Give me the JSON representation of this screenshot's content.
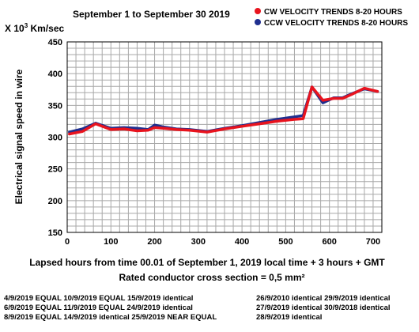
{
  "chart_data": {
    "type": "line",
    "title": "September 1 to September 30  2019",
    "y_unit_label": "X 10",
    "y_unit_exp": "3",
    "y_unit_rest": " Km/sec",
    "ylabel": "Electrical signal speed in wire",
    "xlabel": "Lapsed hours from time 00.01 of  September 1, 2019  local time  + 3 hours + GMT",
    "xlabel2": "Rated conductor cross section = 0,5 mm²",
    "xlim": [
      0,
      720
    ],
    "ylim": [
      150,
      450
    ],
    "xticks": [
      0,
      100,
      200,
      300,
      400,
      500,
      600,
      700
    ],
    "yticks": [
      150,
      200,
      250,
      300,
      350,
      400,
      450
    ],
    "grid": true,
    "legend_position": "top-right",
    "series": [
      {
        "name": "CCW VELOCITY TRENDS 8-20 HOURS",
        "color": "#1f2f8f",
        "points": [
          [
            5,
            308
          ],
          [
            35,
            313
          ],
          [
            65,
            322
          ],
          [
            100,
            314
          ],
          [
            130,
            315
          ],
          [
            160,
            314
          ],
          [
            185,
            312
          ],
          [
            200,
            319
          ],
          [
            220,
            316
          ],
          [
            250,
            313
          ],
          [
            280,
            312
          ],
          [
            320,
            309
          ],
          [
            360,
            314
          ],
          [
            400,
            318
          ],
          [
            440,
            323
          ],
          [
            480,
            328
          ],
          [
            520,
            332
          ],
          [
            540,
            334
          ],
          [
            560,
            379
          ],
          [
            585,
            354
          ],
          [
            610,
            362
          ],
          [
            630,
            362
          ],
          [
            650,
            368
          ],
          [
            680,
            376
          ],
          [
            710,
            372
          ]
        ]
      },
      {
        "name": "CW VELOCITY TRENDS 8-20 HOURS",
        "color": "#e8141e",
        "points": [
          [
            5,
            305
          ],
          [
            35,
            309
          ],
          [
            65,
            321
          ],
          [
            100,
            312
          ],
          [
            130,
            313
          ],
          [
            160,
            310
          ],
          [
            185,
            311
          ],
          [
            200,
            315
          ],
          [
            220,
            314
          ],
          [
            250,
            312
          ],
          [
            280,
            311
          ],
          [
            320,
            308
          ],
          [
            360,
            313
          ],
          [
            400,
            317
          ],
          [
            440,
            321
          ],
          [
            480,
            325
          ],
          [
            520,
            328
          ],
          [
            540,
            329
          ],
          [
            560,
            379
          ],
          [
            585,
            358
          ],
          [
            610,
            361
          ],
          [
            630,
            361
          ],
          [
            650,
            367
          ],
          [
            680,
            377
          ],
          [
            710,
            372
          ]
        ]
      }
    ]
  },
  "notes": [
    [
      "4/9/2019   EQUAL   10/9/2019  EQUAL   15/9/2019  identical",
      "26/9/2010 identical  29/9/2019 identical"
    ],
    [
      "6/9/2019    EQUAL   11/9/2019  EQUAL   24/9/2019  identical",
      "27/9/2019 identical  30/9/2018 identical"
    ],
    [
      "8/9/2019    EQUAL  14/9/2019  identical  25/9/2019  NEAR EQUAL",
      "28/9/2019 identical"
    ]
  ]
}
